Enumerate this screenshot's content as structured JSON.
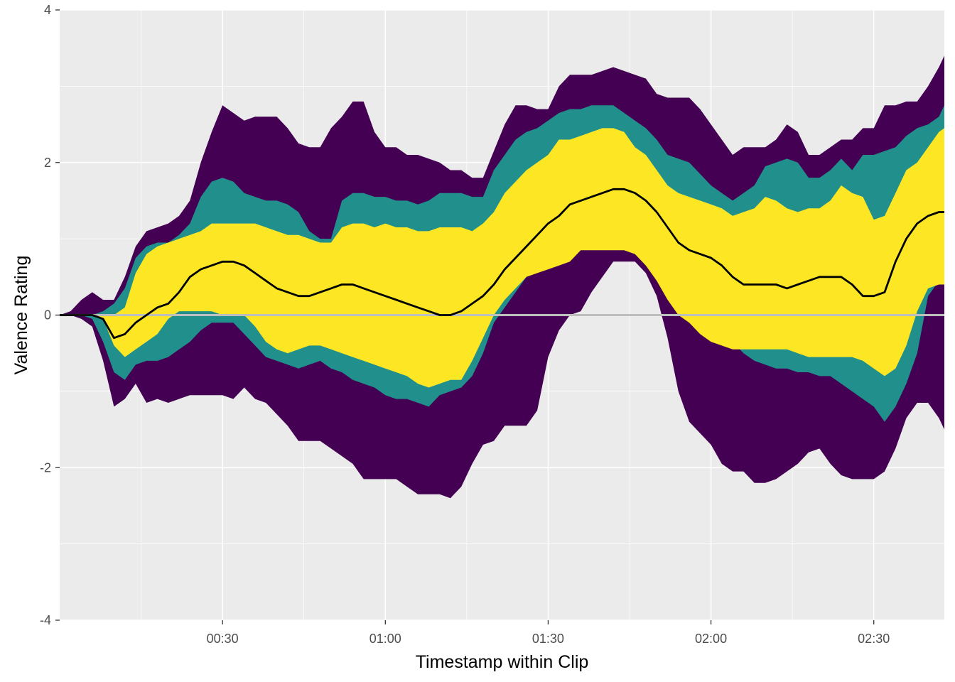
{
  "chart_data": {
    "type": "area",
    "title": "",
    "xlabel": "Timestamp within Clip",
    "ylabel": "Valence Rating",
    "xlim": [
      0,
      163
    ],
    "ylim": [
      -4,
      4
    ],
    "x_ticks": [
      {
        "value": 30,
        "label": "00:30"
      },
      {
        "value": 60,
        "label": "01:00"
      },
      {
        "value": 90,
        "label": "01:30"
      },
      {
        "value": 120,
        "label": "02:00"
      },
      {
        "value": 150,
        "label": "02:30"
      }
    ],
    "y_ticks": [
      {
        "value": -4,
        "label": "-4"
      },
      {
        "value": -2,
        "label": "-2"
      },
      {
        "value": 0,
        "label": "0"
      },
      {
        "value": 2,
        "label": "2"
      },
      {
        "value": 4,
        "label": "4"
      }
    ],
    "grid": true,
    "legend": "none",
    "reference_line": {
      "y": 0,
      "color": "#bebebe"
    },
    "x": [
      0,
      2,
      4,
      6,
      8,
      10,
      12,
      14,
      16,
      18,
      20,
      22,
      24,
      26,
      28,
      30,
      32,
      34,
      36,
      38,
      40,
      42,
      44,
      46,
      48,
      50,
      52,
      54,
      56,
      58,
      60,
      62,
      64,
      66,
      68,
      70,
      72,
      74,
      76,
      78,
      80,
      82,
      84,
      86,
      88,
      90,
      92,
      94,
      96,
      98,
      100,
      102,
      104,
      106,
      108,
      110,
      112,
      114,
      116,
      118,
      120,
      122,
      124,
      126,
      128,
      130,
      132,
      134,
      136,
      138,
      140,
      142,
      144,
      146,
      148,
      150,
      152,
      154,
      156,
      158,
      160,
      162,
      163
    ],
    "series": [
      {
        "color": "#440154",
        "lower": [
          0,
          0,
          -0.05,
          -0.15,
          -0.6,
          -1.2,
          -1.1,
          -0.9,
          -1.15,
          -1.1,
          -1.15,
          -1.1,
          -1.05,
          -1.05,
          -1.05,
          -1.05,
          -1.1,
          -0.95,
          -1.1,
          -1.15,
          -1.3,
          -1.45,
          -1.65,
          -1.65,
          -1.65,
          -1.75,
          -1.85,
          -1.95,
          -2.15,
          -2.15,
          -2.15,
          -2.15,
          -2.25,
          -2.35,
          -2.35,
          -2.35,
          -2.4,
          -2.25,
          -1.95,
          -1.7,
          -1.65,
          -1.45,
          -1.45,
          -1.45,
          -1.25,
          -0.55,
          -0.2,
          0,
          0.05,
          0.3,
          0.5,
          0.7,
          0.7,
          0.7,
          0.55,
          0.25,
          -0.3,
          -1.0,
          -1.4,
          -1.55,
          -1.7,
          -1.95,
          -2.05,
          -2.05,
          -2.2,
          -2.2,
          -2.15,
          -2.05,
          -1.95,
          -1.8,
          -1.75,
          -1.95,
          -2.1,
          -2.15,
          -2.15,
          -2.15,
          -2.05,
          -1.75,
          -1.35,
          -1.15,
          -1.15,
          -1.35,
          -1.5
        ],
        "upper": [
          0,
          0.05,
          0.2,
          0.3,
          0.2,
          0.2,
          0.5,
          0.9,
          1.1,
          1.15,
          1.2,
          1.3,
          1.5,
          2.0,
          2.4,
          2.75,
          2.65,
          2.55,
          2.6,
          2.6,
          2.6,
          2.45,
          2.25,
          2.2,
          2.2,
          2.45,
          2.6,
          2.8,
          2.8,
          2.4,
          2.2,
          2.2,
          2.1,
          2.1,
          2.05,
          2.0,
          1.9,
          1.9,
          1.8,
          1.8,
          2.15,
          2.5,
          2.75,
          2.75,
          2.7,
          2.7,
          3.0,
          3.15,
          3.15,
          3.15,
          3.2,
          3.25,
          3.2,
          3.15,
          3.1,
          2.9,
          2.85,
          2.85,
          2.85,
          2.7,
          2.5,
          2.3,
          2.1,
          2.2,
          2.2,
          2.2,
          2.3,
          2.5,
          2.4,
          2.1,
          2.1,
          2.2,
          2.3,
          2.3,
          2.45,
          2.45,
          2.75,
          2.75,
          2.8,
          2.8,
          3.0,
          3.25,
          3.4
        ]
      },
      {
        "color": "#21908c",
        "lower": [
          0,
          0,
          0,
          -0.05,
          -0.35,
          -0.75,
          -0.85,
          -0.65,
          -0.6,
          -0.6,
          -0.55,
          -0.45,
          -0.35,
          -0.2,
          -0.1,
          -0.1,
          -0.1,
          -0.25,
          -0.4,
          -0.55,
          -0.6,
          -0.65,
          -0.7,
          -0.65,
          -0.6,
          -0.7,
          -0.75,
          -0.85,
          -0.9,
          -0.95,
          -1.05,
          -1.1,
          -1.1,
          -1.15,
          -1.2,
          -1.05,
          -1.0,
          -0.95,
          -0.8,
          -0.5,
          -0.1,
          0.1,
          0.3,
          0.5,
          0.7,
          0.8,
          0.8,
          0.95,
          1.0,
          1.0,
          1.0,
          1.0,
          1.0,
          0.85,
          0.7,
          0.5,
          0.3,
          0.15,
          0,
          -0.1,
          -0.15,
          -0.25,
          -0.35,
          -0.5,
          -0.6,
          -0.65,
          -0.7,
          -0.7,
          -0.75,
          -0.75,
          -0.8,
          -0.8,
          -0.9,
          -1.0,
          -1.1,
          -1.2,
          -1.4,
          -1.2,
          -0.9,
          -0.5,
          0.25,
          0.45,
          0.45
        ]
      },
      {
        "color": "#21908c",
        "upper": [
          0,
          0,
          0,
          0,
          0.05,
          0.15,
          0.35,
          0.75,
          0.9,
          0.95,
          0.95,
          1.05,
          1.2,
          1.55,
          1.75,
          1.8,
          1.75,
          1.6,
          1.55,
          1.5,
          1.5,
          1.45,
          1.35,
          1.1,
          1.0,
          1.0,
          1.5,
          1.6,
          1.6,
          1.55,
          1.55,
          1.5,
          1.5,
          1.45,
          1.5,
          1.6,
          1.6,
          1.6,
          1.55,
          1.55,
          1.9,
          2.1,
          2.3,
          2.4,
          2.45,
          2.55,
          2.65,
          2.7,
          2.7,
          2.75,
          2.75,
          2.75,
          2.65,
          2.55,
          2.45,
          2.3,
          2.1,
          2.05,
          2.0,
          1.85,
          1.7,
          1.6,
          1.5,
          1.6,
          1.7,
          1.95,
          2.0,
          2.05,
          2.0,
          1.8,
          1.8,
          1.9,
          2.05,
          1.9,
          2.1,
          2.1,
          2.15,
          2.2,
          2.35,
          2.45,
          2.5,
          2.6,
          2.75
        ]
      },
      {
        "color": "#fde725",
        "lower": [
          0,
          0,
          0,
          0,
          -0.05,
          -0.4,
          -0.55,
          -0.45,
          -0.35,
          -0.25,
          -0.05,
          0.05,
          0.05,
          0.05,
          0.05,
          0,
          0,
          0,
          -0.15,
          -0.35,
          -0.45,
          -0.5,
          -0.45,
          -0.4,
          -0.4,
          -0.45,
          -0.5,
          -0.55,
          -0.6,
          -0.65,
          -0.7,
          -0.75,
          -0.8,
          -0.9,
          -0.95,
          -0.9,
          -0.85,
          -0.85,
          -0.6,
          -0.3,
          0,
          0.2,
          0.35,
          0.5,
          0.55,
          0.6,
          0.65,
          0.7,
          0.85,
          0.85,
          0.85,
          0.85,
          0.85,
          0.8,
          0.65,
          0.45,
          0.2,
          0,
          -0.1,
          -0.25,
          -0.35,
          -0.4,
          -0.45,
          -0.45,
          -0.45,
          -0.45,
          -0.45,
          -0.45,
          -0.5,
          -0.55,
          -0.55,
          -0.55,
          -0.55,
          -0.55,
          -0.6,
          -0.7,
          -0.8,
          -0.7,
          -0.4,
          0.05,
          0.35,
          0.4,
          0.4
        ],
        "upper": [
          0,
          0,
          0,
          0,
          0,
          0,
          0.1,
          0.55,
          0.8,
          0.9,
          0.95,
          1.0,
          1.05,
          1.1,
          1.2,
          1.2,
          1.2,
          1.2,
          1.2,
          1.15,
          1.1,
          1.05,
          1.05,
          1.0,
          0.95,
          0.95,
          1.15,
          1.2,
          1.2,
          1.15,
          1.2,
          1.15,
          1.15,
          1.1,
          1.1,
          1.15,
          1.15,
          1.15,
          1.1,
          1.2,
          1.35,
          1.6,
          1.75,
          1.9,
          2.0,
          2.1,
          2.3,
          2.3,
          2.35,
          2.4,
          2.45,
          2.45,
          2.4,
          2.2,
          2.1,
          1.9,
          1.7,
          1.6,
          1.55,
          1.5,
          1.45,
          1.4,
          1.3,
          1.35,
          1.4,
          1.55,
          1.5,
          1.4,
          1.35,
          1.4,
          1.4,
          1.5,
          1.7,
          1.6,
          1.55,
          1.25,
          1.3,
          1.6,
          1.9,
          2.0,
          2.2,
          2.4,
          2.45
        ]
      },
      {
        "color": "#000000",
        "values": [
          0,
          0,
          0,
          0,
          -0.05,
          -0.3,
          -0.25,
          -0.1,
          0,
          0.1,
          0.15,
          0.3,
          0.5,
          0.6,
          0.65,
          0.7,
          0.7,
          0.65,
          0.55,
          0.45,
          0.35,
          0.3,
          0.25,
          0.25,
          0.3,
          0.35,
          0.4,
          0.4,
          0.35,
          0.3,
          0.25,
          0.2,
          0.15,
          0.1,
          0.05,
          0,
          0,
          0.05,
          0.15,
          0.25,
          0.4,
          0.6,
          0.75,
          0.9,
          1.05,
          1.2,
          1.3,
          1.45,
          1.5,
          1.55,
          1.6,
          1.65,
          1.65,
          1.6,
          1.5,
          1.35,
          1.15,
          0.95,
          0.85,
          0.8,
          0.75,
          0.65,
          0.5,
          0.4,
          0.4,
          0.4,
          0.4,
          0.35,
          0.4,
          0.45,
          0.5,
          0.5,
          0.5,
          0.4,
          0.25,
          0.25,
          0.3,
          0.7,
          1.0,
          1.2,
          1.3,
          1.35,
          1.35
        ]
      }
    ]
  }
}
